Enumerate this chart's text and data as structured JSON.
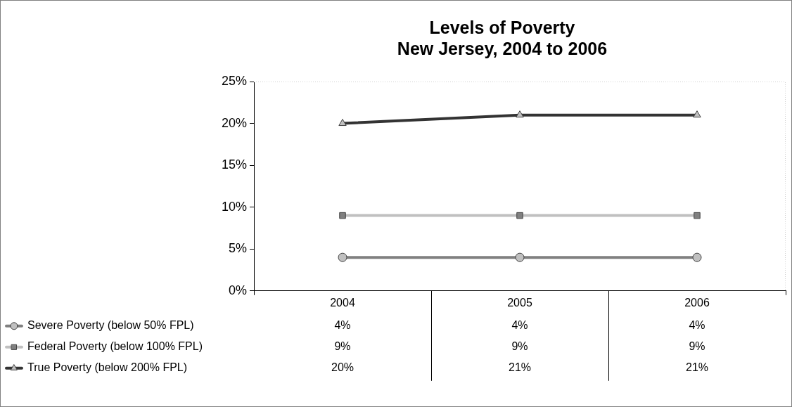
{
  "chart_data": {
    "type": "line",
    "title": "Levels of Poverty\nNew Jersey, 2004 to 2006",
    "categories": [
      "2004",
      "2005",
      "2006"
    ],
    "series": [
      {
        "name": "Severe Poverty (below 50% FPL)",
        "color": "#808080",
        "marker": "circle",
        "values": [
          4,
          4,
          4
        ],
        "value_labels": [
          "4%",
          "4%",
          "4%"
        ]
      },
      {
        "name": "Federal Poverty (below 100% FPL)",
        "color": "#c0c0c0",
        "marker": "square",
        "values": [
          9,
          9,
          9
        ],
        "value_labels": [
          "9%",
          "9%",
          "9%"
        ]
      },
      {
        "name": "True Poverty (below 200% FPL)",
        "color": "#333333",
        "marker": "triangle",
        "values": [
          20,
          21,
          21
        ],
        "value_labels": [
          "20%",
          "21%",
          "21%"
        ]
      }
    ],
    "ylim": [
      0,
      25
    ],
    "yticks": [
      {
        "value": 0,
        "label": "0%"
      },
      {
        "value": 5,
        "label": "5%"
      },
      {
        "value": 10,
        "label": "10%"
      },
      {
        "value": 15,
        "label": "15%"
      },
      {
        "value": 20,
        "label": "20%"
      },
      {
        "value": 25,
        "label": "25%"
      }
    ],
    "grid": false,
    "legend": "bottom left",
    "line_style": "solid"
  }
}
